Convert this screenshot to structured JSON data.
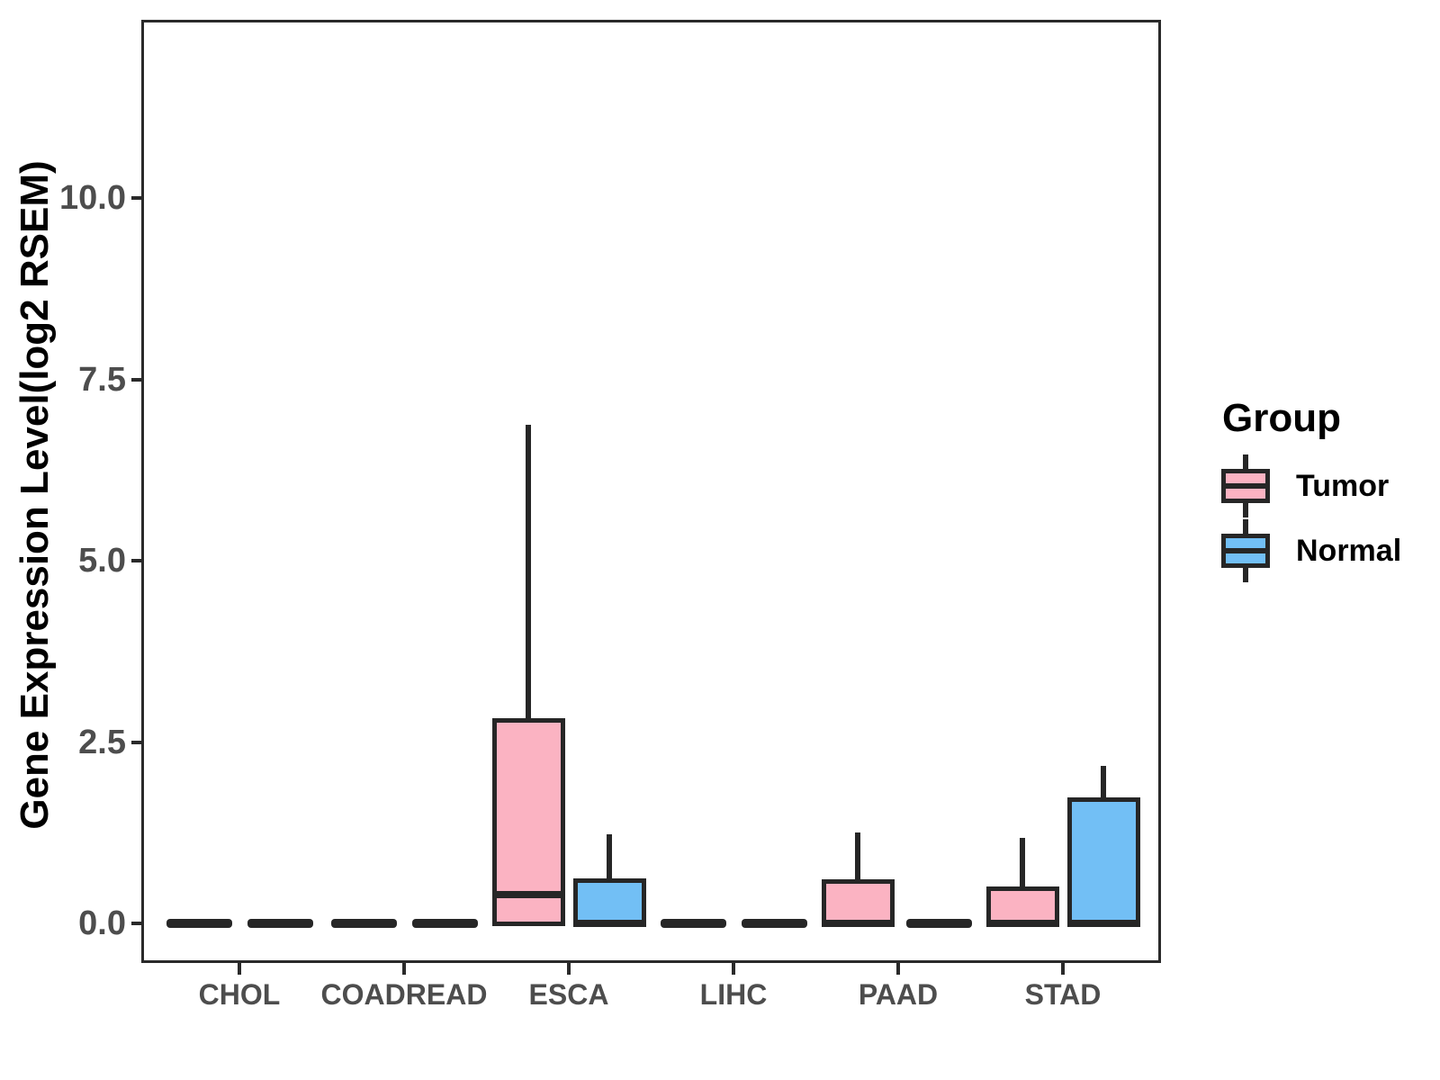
{
  "colors": {
    "tumor_fill": "#FBB3C2",
    "normal_fill": "#72BFF5",
    "line": "#262626",
    "panel_border": "#2A2A2A",
    "axis_text": "#4D4D4D",
    "axis_title": "#000000",
    "background": "#FFFFFF"
  },
  "legend": {
    "title": "Group",
    "items": [
      {
        "label": "Tumor",
        "color": "#FBB3C2"
      },
      {
        "label": "Normal",
        "color": "#72BFF5"
      }
    ]
  },
  "chart_data": {
    "type": "boxplot",
    "title": "",
    "xlabel": "",
    "ylabel": "Gene Expression Level(log2 RSEM)",
    "categories": [
      "CHOL",
      "COADREAD",
      "ESCA",
      "LIHC",
      "PAAD",
      "STAD"
    ],
    "groups": [
      "Tumor",
      "Normal"
    ],
    "y_axis": {
      "ticks": [
        {
          "value": 0,
          "label": "0.0"
        },
        {
          "value": 2.5,
          "label": "2.5"
        },
        {
          "value": 5,
          "label": "5.0"
        },
        {
          "value": 7.5,
          "label": "7.5"
        },
        {
          "value": 10,
          "label": "10.0"
        }
      ],
      "range": [
        -0.55,
        12.45
      ],
      "grid": false
    },
    "legend_position": "right",
    "series": [
      {
        "name": "Tumor",
        "color": "#FBB3C2",
        "boxes": [
          {
            "category": "CHOL",
            "whisker_low": 0,
            "q1": 0,
            "median": 0,
            "q3": 0,
            "whisker_high": 0
          },
          {
            "category": "COADREAD",
            "whisker_low": 0,
            "q1": 0,
            "median": 0,
            "q3": 0,
            "whisker_high": 0
          },
          {
            "category": "ESCA",
            "whisker_low": 0,
            "q1": 0,
            "median": 0.4,
            "q3": 2.8,
            "whisker_high": 6.85
          },
          {
            "category": "LIHC",
            "whisker_low": 0,
            "q1": 0,
            "median": 0,
            "q3": 0,
            "whisker_high": 0
          },
          {
            "category": "PAAD",
            "whisker_low": 0,
            "q1": 0,
            "median": 0,
            "q3": 0.58,
            "whisker_high": 1.23
          },
          {
            "category": "STAD",
            "whisker_low": 0,
            "q1": 0,
            "median": 0,
            "q3": 0.48,
            "whisker_high": 1.15
          }
        ]
      },
      {
        "name": "Normal",
        "color": "#72BFF5",
        "boxes": [
          {
            "category": "CHOL",
            "whisker_low": 0,
            "q1": 0,
            "median": 0,
            "q3": 0,
            "whisker_high": 0
          },
          {
            "category": "COADREAD",
            "whisker_low": 0,
            "q1": 0,
            "median": 0,
            "q3": 0,
            "whisker_high": 0
          },
          {
            "category": "ESCA",
            "whisker_low": 0,
            "q1": 0,
            "median": 0,
            "q3": 0.6,
            "whisker_high": 1.2
          },
          {
            "category": "LIHC",
            "whisker_low": 0,
            "q1": 0,
            "median": 0,
            "q3": 0,
            "whisker_high": 0
          },
          {
            "category": "PAAD",
            "whisker_low": 0,
            "q1": 0,
            "median": 0,
            "q3": 0,
            "whisker_high": 0
          },
          {
            "category": "STAD",
            "whisker_low": 0,
            "q1": 0,
            "median": 0,
            "q3": 1.71,
            "whisker_high": 2.15
          }
        ]
      }
    ]
  }
}
